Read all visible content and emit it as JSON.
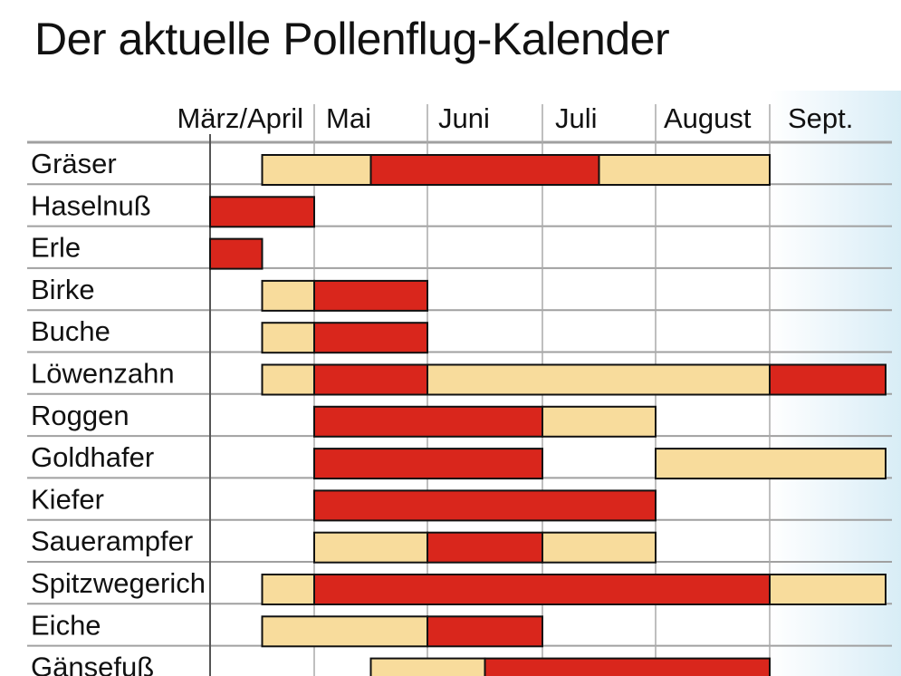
{
  "chart_data": {
    "type": "gantt",
    "title": "Der aktuelle Pollenflug-Kalender",
    "months": [
      "März/April",
      "Mai",
      "Juni",
      "Juli",
      "August",
      "Sept."
    ],
    "intensity_colors": {
      "light": "#f8dc9c",
      "strong": "#d9261c"
    },
    "grid": true,
    "rows": [
      {
        "name": "Gräser",
        "segments": [
          [
            0.5,
            1.5,
            "light"
          ],
          [
            1.5,
            3.5,
            "strong"
          ],
          [
            3.5,
            5,
            "light"
          ]
        ]
      },
      {
        "name": "Haselnuß",
        "segments": [
          [
            0,
            1,
            "strong"
          ]
        ]
      },
      {
        "name": "Erle",
        "segments": [
          [
            0,
            0.5,
            "strong"
          ]
        ]
      },
      {
        "name": "Birke",
        "segments": [
          [
            0.5,
            1,
            "light"
          ],
          [
            1,
            2,
            "strong"
          ]
        ]
      },
      {
        "name": "Buche",
        "segments": [
          [
            0.5,
            1,
            "light"
          ],
          [
            1,
            2,
            "strong"
          ]
        ]
      },
      {
        "name": "Löwenzahn",
        "segments": [
          [
            0.5,
            1,
            "light"
          ],
          [
            1,
            2,
            "strong"
          ],
          [
            2,
            5,
            "light"
          ],
          [
            5,
            6,
            "strong"
          ]
        ]
      },
      {
        "name": "Roggen",
        "segments": [
          [
            1,
            3,
            "strong"
          ],
          [
            3,
            4,
            "light"
          ]
        ]
      },
      {
        "name": "Goldhafer",
        "segments": [
          [
            1,
            3,
            "strong"
          ],
          [
            4,
            6,
            "light"
          ]
        ]
      },
      {
        "name": "Kiefer",
        "segments": [
          [
            1,
            4,
            "strong"
          ]
        ]
      },
      {
        "name": "Sauerampfer",
        "segments": [
          [
            1,
            2,
            "light"
          ],
          [
            2,
            3,
            "strong"
          ],
          [
            3,
            4,
            "light"
          ]
        ]
      },
      {
        "name": "Spitzwegerich",
        "segments": [
          [
            0.5,
            1,
            "light"
          ],
          [
            1,
            5,
            "strong"
          ],
          [
            5,
            6,
            "light"
          ]
        ]
      },
      {
        "name": "Eiche",
        "segments": [
          [
            0.5,
            2,
            "light"
          ],
          [
            2,
            3,
            "strong"
          ]
        ]
      },
      {
        "name": "Gänsefuß",
        "segments": [
          [
            1.5,
            2.5,
            "light"
          ],
          [
            2.5,
            5,
            "strong"
          ]
        ]
      }
    ]
  }
}
